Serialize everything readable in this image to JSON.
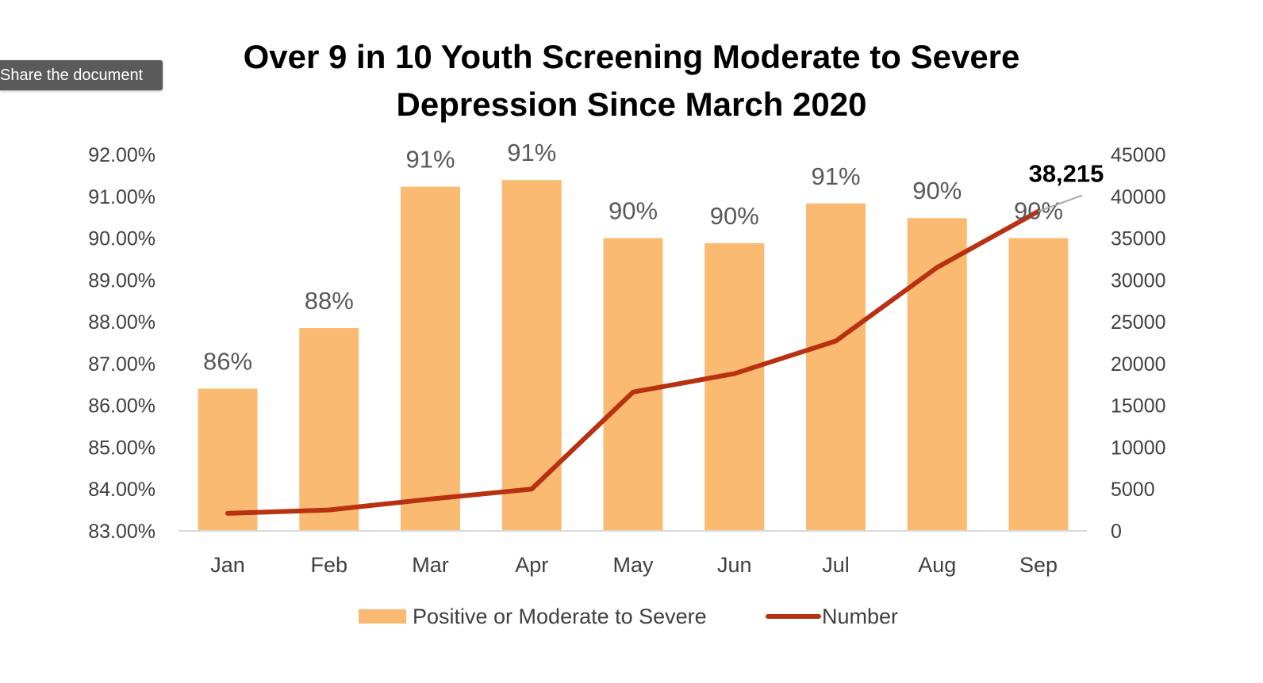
{
  "tooltip": {
    "text": "Share the document"
  },
  "chart_data": {
    "type": "bar+line",
    "title_line1": "Over 9 in 10 Youth Screening Moderate to Severe",
    "title_line2": "Depression Since March 2020",
    "categories": [
      "Jan",
      "Feb",
      "Mar",
      "Apr",
      "May",
      "Jun",
      "Jul",
      "Aug",
      "Sep"
    ],
    "series": [
      {
        "name": "Positive or Moderate to Severe",
        "kind": "bar",
        "axis": "left",
        "color": "#FBBA72",
        "values": [
          0.864,
          0.8785,
          0.9123,
          0.9139,
          0.9,
          0.8988,
          0.9083,
          0.9048,
          0.9
        ],
        "data_labels": [
          "86%",
          "88%",
          "91%",
          "91%",
          "90%",
          "90%",
          "91%",
          "90%",
          "90%"
        ]
      },
      {
        "name": "Number",
        "kind": "line",
        "axis": "right",
        "color": "#B83110",
        "values": [
          2100,
          2500,
          3800,
          5000,
          16600,
          18800,
          22700,
          31500,
          38215
        ]
      }
    ],
    "left_axis": {
      "range": [
        0.83,
        0.92
      ],
      "ticks": [
        0.83,
        0.84,
        0.85,
        0.86,
        0.87,
        0.88,
        0.89,
        0.9,
        0.91,
        0.92
      ],
      "tick_labels": [
        "83.00%",
        "84.00%",
        "85.00%",
        "86.00%",
        "87.00%",
        "88.00%",
        "89.00%",
        "90.00%",
        "91.00%",
        "92.00%"
      ]
    },
    "right_axis": {
      "range": [
        0,
        45000
      ],
      "ticks": [
        0,
        5000,
        10000,
        15000,
        20000,
        25000,
        30000,
        35000,
        40000,
        45000
      ],
      "tick_labels": [
        "0",
        "5000",
        "10000",
        "15000",
        "20000",
        "25000",
        "30000",
        "35000",
        "40000",
        "45000"
      ]
    },
    "annotation": {
      "text": "38,215",
      "series": "Number",
      "category": "Sep"
    },
    "legend_position": "bottom",
    "grid": false
  }
}
